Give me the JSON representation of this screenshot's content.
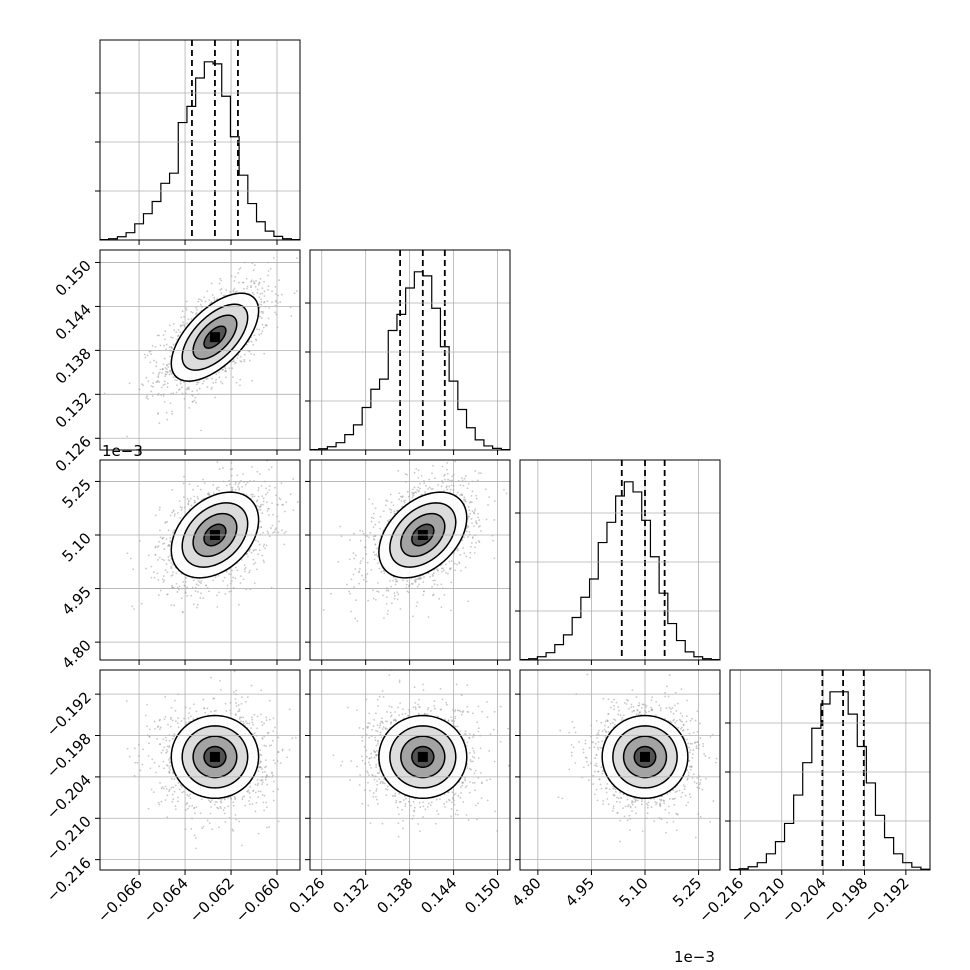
{
  "chart_data": {
    "type": "corner",
    "title": "",
    "parameters": [
      {
        "ticks": [
          "−0.066",
          "−0.064",
          "−0.062",
          "−0.060"
        ],
        "tick_values": [
          -0.066,
          -0.064,
          -0.062,
          -0.06
        ],
        "range": [
          -0.0677,
          -0.059
        ],
        "median": -0.0627,
        "q16": -0.0637,
        "q84": -0.0617,
        "sigma": 0.00095,
        "offset": ""
      },
      {
        "ticks": [
          "0.126",
          "0.132",
          "0.138",
          "0.144",
          "0.150"
        ],
        "tick_values": [
          0.126,
          0.132,
          0.138,
          0.144,
          0.15
        ],
        "range": [
          0.1244,
          0.1517
        ],
        "median": 0.1398,
        "q16": 0.1367,
        "q84": 0.1428,
        "sigma": 0.003,
        "offset": ""
      },
      {
        "ticks": [
          "4.80",
          "4.95",
          "5.10",
          "5.25"
        ],
        "tick_values": [
          4.8,
          4.95,
          5.1,
          5.25
        ],
        "range": [
          4.75,
          5.31
        ],
        "median": 5.1,
        "q16": 5.035,
        "q84": 5.155,
        "sigma": 0.06,
        "offset": "1e−3"
      },
      {
        "ticks": [
          "−0.216",
          "−0.210",
          "−0.204",
          "−0.198",
          "−0.192"
        ],
        "tick_values": [
          -0.216,
          -0.21,
          -0.204,
          -0.198,
          -0.192
        ],
        "range": [
          -0.2175,
          -0.1885
        ],
        "median": -0.2011,
        "q16": -0.2041,
        "q84": -0.1981,
        "sigma": 0.003,
        "offset": ""
      }
    ],
    "correlations": {
      "1-0": 0.6,
      "2-0": 0.35,
      "2-1": 0.4,
      "3-0": 0.0,
      "3-1": 0.0,
      "3-2": 0.0
    },
    "histograms": [
      [
        1,
        3,
        8,
        18,
        40,
        65,
        95,
        140,
        165,
        290,
        330,
        400,
        440,
        435,
        355,
        255,
        160,
        90,
        45,
        22,
        9,
        3,
        1
      ],
      [
        1,
        3,
        8,
        18,
        38,
        62,
        105,
        150,
        175,
        295,
        335,
        400,
        440,
        430,
        350,
        255,
        170,
        100,
        55,
        25,
        10,
        4,
        1
      ],
      [
        1,
        3,
        8,
        18,
        38,
        62,
        105,
        155,
        200,
        290,
        340,
        405,
        440,
        415,
        345,
        255,
        165,
        90,
        48,
        20,
        8,
        3,
        1
      ],
      [
        1,
        3,
        8,
        18,
        40,
        70,
        115,
        185,
        265,
        350,
        410,
        440,
        440,
        385,
        305,
        215,
        135,
        80,
        40,
        18,
        7,
        2
      ]
    ],
    "grid": true
  }
}
